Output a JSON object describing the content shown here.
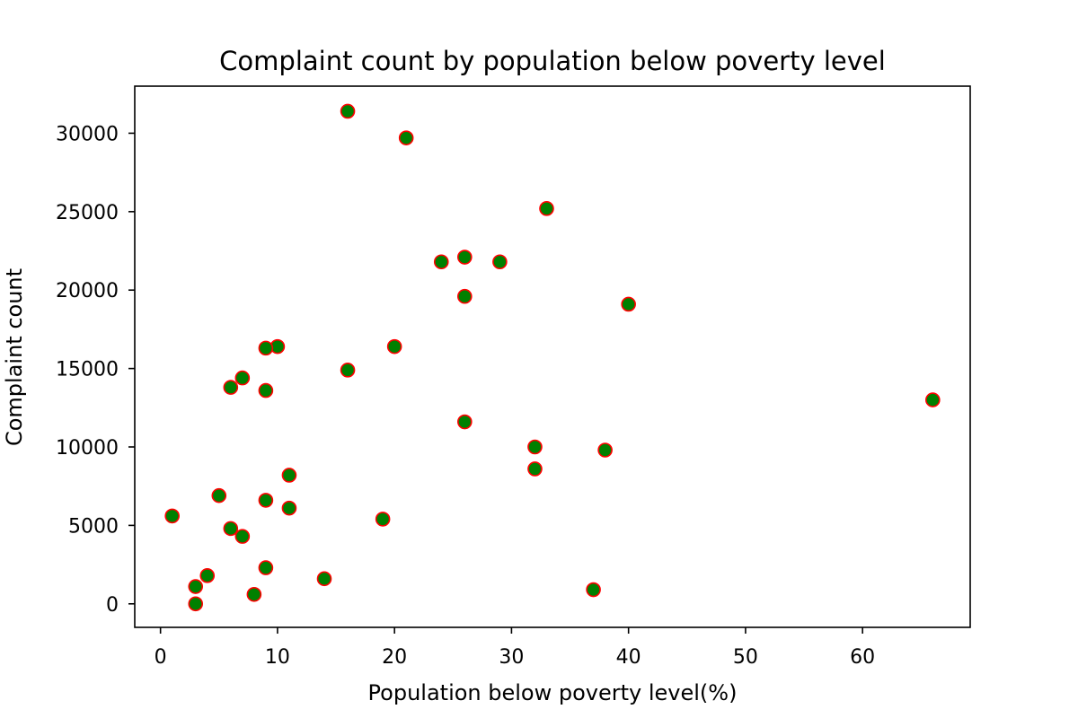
{
  "chart_data": {
    "type": "scatter",
    "title": "Complaint count by population below poverty level",
    "xlabel": "Population below poverty level(%)",
    "ylabel": "Complaint count",
    "xlim": [
      -2.2,
      69.2
    ],
    "ylim": [
      -1500,
      33000
    ],
    "xticks": [
      0,
      10,
      20,
      30,
      40,
      50,
      60
    ],
    "yticks": [
      0,
      5000,
      10000,
      15000,
      20000,
      25000,
      30000
    ],
    "grid": false,
    "marker": {
      "face_color": "#008000",
      "edge_color": "#ff0000"
    },
    "points": [
      {
        "x": 16,
        "y": 31400
      },
      {
        "x": 21,
        "y": 29700
      },
      {
        "x": 33,
        "y": 25200
      },
      {
        "x": 24,
        "y": 21800
      },
      {
        "x": 26,
        "y": 22100
      },
      {
        "x": 29,
        "y": 21800
      },
      {
        "x": 26,
        "y": 19600
      },
      {
        "x": 40,
        "y": 19100
      },
      {
        "x": 10,
        "y": 16400
      },
      {
        "x": 9,
        "y": 16300
      },
      {
        "x": 20,
        "y": 16400
      },
      {
        "x": 16,
        "y": 14900
      },
      {
        "x": 7,
        "y": 14400
      },
      {
        "x": 6,
        "y": 13800
      },
      {
        "x": 9,
        "y": 13600
      },
      {
        "x": 66,
        "y": 13000
      },
      {
        "x": 26,
        "y": 11600
      },
      {
        "x": 32,
        "y": 10000
      },
      {
        "x": 38,
        "y": 9800
      },
      {
        "x": 32,
        "y": 8600
      },
      {
        "x": 11,
        "y": 8200
      },
      {
        "x": 5,
        "y": 6900
      },
      {
        "x": 9,
        "y": 6600
      },
      {
        "x": 11,
        "y": 6100
      },
      {
        "x": 1,
        "y": 5600
      },
      {
        "x": 19,
        "y": 5400
      },
      {
        "x": 6,
        "y": 4800
      },
      {
        "x": 7,
        "y": 4300
      },
      {
        "x": 9,
        "y": 2300
      },
      {
        "x": 4,
        "y": 1800
      },
      {
        "x": 14,
        "y": 1600
      },
      {
        "x": 3,
        "y": 1100
      },
      {
        "x": 37,
        "y": 900
      },
      {
        "x": 8,
        "y": 600
      },
      {
        "x": 3,
        "y": 0
      }
    ]
  }
}
